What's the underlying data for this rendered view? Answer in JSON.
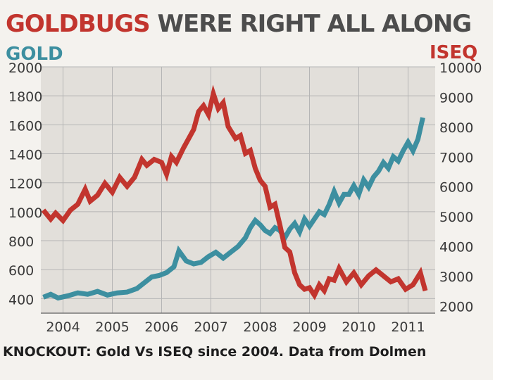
{
  "header": {
    "title_part1": "GOLDBUGS",
    "title_part2": "WERE RIGHT ALL ALONG",
    "left_axis_label": "GOLD",
    "right_axis_label": "ISEQ"
  },
  "caption": "KNOCKOUT: Gold Vs ISEQ since 2004. Data from Dolmen",
  "colors": {
    "gold": "#3d8fa0",
    "iseq": "#c2352e",
    "title_dark": "#4d4d4d",
    "grid": "#b5b5b5"
  },
  "chart_data": {
    "type": "line",
    "title": "GOLDBUGS WERE RIGHT ALL ALONG",
    "x_ticks": [
      "2004",
      "2005",
      "2006",
      "2007",
      "2008",
      "2009",
      "2010",
      "2011"
    ],
    "xlim": [
      2003.55,
      2011.55
    ],
    "y_left": {
      "label": "GOLD",
      "ylim": [
        300,
        2000
      ],
      "ticks": [
        "2000",
        "1800",
        "1600",
        "1400",
        "1200",
        "1000",
        "800",
        "600",
        "400"
      ]
    },
    "y_right": {
      "label": "ISEQ",
      "ylim": [
        1750,
        10000
      ],
      "ticks": [
        "10000",
        "9000",
        "8000",
        "7000",
        "6000",
        "5000",
        "4000",
        "3000",
        "2000"
      ]
    },
    "grid": true,
    "series": [
      {
        "name": "GOLD",
        "axis": "left",
        "x": [
          2003.6,
          2003.75,
          2003.9,
          2004.1,
          2004.3,
          2004.5,
          2004.7,
          2004.9,
          2005.1,
          2005.3,
          2005.5,
          2005.65,
          2005.8,
          2005.95,
          2006.1,
          2006.25,
          2006.35,
          2006.5,
          2006.65,
          2006.8,
          2006.95,
          2007.1,
          2007.25,
          2007.4,
          2007.55,
          2007.7,
          2007.8,
          2007.9,
          2008.0,
          2008.1,
          2008.2,
          2008.3,
          2008.4,
          2008.5,
          2008.6,
          2008.7,
          2008.8,
          2008.9,
          2009.0,
          2009.1,
          2009.2,
          2009.3,
          2009.4,
          2009.5,
          2009.6,
          2009.7,
          2009.8,
          2009.9,
          2010.0,
          2010.1,
          2010.2,
          2010.3,
          2010.4,
          2010.5,
          2010.6,
          2010.7,
          2010.8,
          2010.9,
          2011.0,
          2011.1,
          2011.2,
          2011.3
        ],
        "y": [
          410,
          430,
          405,
          420,
          440,
          430,
          450,
          425,
          440,
          445,
          470,
          510,
          550,
          560,
          580,
          620,
          730,
          660,
          640,
          650,
          690,
          720,
          680,
          720,
          760,
          820,
          890,
          940,
          910,
          870,
          850,
          890,
          870,
          820,
          880,
          920,
          860,
          950,
          900,
          950,
          1000,
          980,
          1050,
          1140,
          1060,
          1120,
          1120,
          1180,
          1120,
          1220,
          1170,
          1240,
          1280,
          1340,
          1300,
          1380,
          1350,
          1420,
          1480,
          1420,
          1500,
          1650
        ]
      },
      {
        "name": "ISEQ",
        "axis": "right",
        "x": [
          2003.6,
          2003.75,
          2003.85,
          2004.0,
          2004.15,
          2004.3,
          2004.45,
          2004.55,
          2004.7,
          2004.85,
          2005.0,
          2005.15,
          2005.3,
          2005.45,
          2005.6,
          2005.7,
          2005.85,
          2006.0,
          2006.1,
          2006.2,
          2006.3,
          2006.45,
          2006.55,
          2006.65,
          2006.75,
          2006.85,
          2006.95,
          2007.05,
          2007.15,
          2007.25,
          2007.35,
          2007.5,
          2007.6,
          2007.7,
          2007.8,
          2007.9,
          2008.0,
          2008.1,
          2008.2,
          2008.3,
          2008.4,
          2008.5,
          2008.6,
          2008.7,
          2008.8,
          2008.9,
          2009.0,
          2009.1,
          2009.2,
          2009.3,
          2009.4,
          2009.5,
          2009.6,
          2009.75,
          2009.9,
          2010.05,
          2010.2,
          2010.35,
          2010.5,
          2010.65,
          2010.8,
          2010.95,
          2011.1,
          2011.25,
          2011.35
        ],
        "y": [
          5200,
          4900,
          5100,
          4850,
          5200,
          5400,
          5900,
          5500,
          5700,
          6100,
          5800,
          6300,
          6000,
          6300,
          6900,
          6700,
          6900,
          6800,
          6400,
          7000,
          6800,
          7300,
          7600,
          7900,
          8500,
          8700,
          8400,
          9100,
          8600,
          8800,
          8000,
          7600,
          7700,
          7100,
          7200,
          6600,
          6200,
          6000,
          5300,
          5400,
          4700,
          3950,
          3800,
          3100,
          2700,
          2550,
          2600,
          2350,
          2700,
          2500,
          2900,
          2850,
          3250,
          2800,
          3100,
          2700,
          3000,
          3200,
          3000,
          2800,
          2900,
          2550,
          2700,
          3100,
          2500
        ]
      }
    ]
  }
}
